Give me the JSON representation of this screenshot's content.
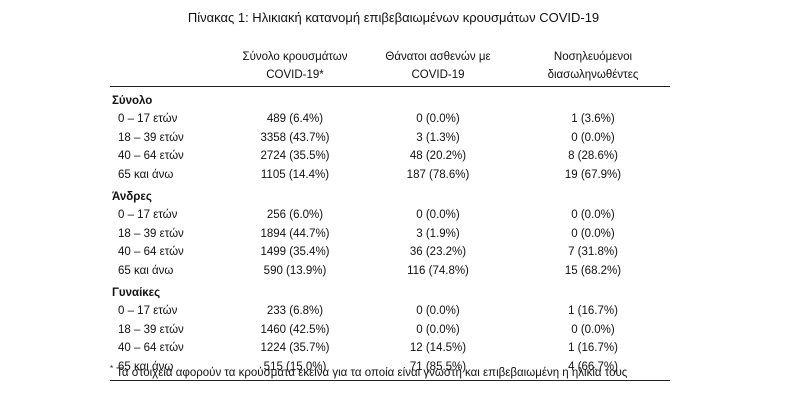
{
  "title": "Πίνακας 1: Ηλικιακή κατανομή επιβεβαιωμένων κρουσμάτων COVID-19",
  "columns": [
    {
      "line1": "Σύνολο κρουσμάτων",
      "line2": "COVID-19*"
    },
    {
      "line1": "Θάνατοι ασθενών με",
      "line2": "COVID-19"
    },
    {
      "line1": "Νοσηλευόμενοι",
      "line2": "διασωληνωθέντες"
    }
  ],
  "groups": [
    {
      "name": "Σύνολο",
      "rows": [
        {
          "age": "0 – 17 ετών",
          "cases": "489 (6.4%)",
          "deaths": "0 (0.0%)",
          "intubated": "1 (3.6%)"
        },
        {
          "age": "18 – 39 ετών",
          "cases": "3358 (43.7%)",
          "deaths": "3 (1.3%)",
          "intubated": "0 (0.0%)"
        },
        {
          "age": "40 – 64 ετών",
          "cases": "2724 (35.5%)",
          "deaths": "48 (20.2%)",
          "intubated": "8 (28.6%)"
        },
        {
          "age": "65 και άνω",
          "cases": "1105 (14.4%)",
          "deaths": "187 (78.6%)",
          "intubated": "19 (67.9%)"
        }
      ]
    },
    {
      "name": "Άνδρες",
      "rows": [
        {
          "age": "0 – 17 ετών",
          "cases": "256 (6.0%)",
          "deaths": "0 (0.0%)",
          "intubated": "0 (0.0%)"
        },
        {
          "age": "18 – 39 ετών",
          "cases": "1894 (44.7%)",
          "deaths": "3 (1.9%)",
          "intubated": "0 (0.0%)"
        },
        {
          "age": "40 – 64 ετών",
          "cases": "1499 (35.4%)",
          "deaths": "36 (23.2%)",
          "intubated": "7 (31.8%)"
        },
        {
          "age": "65 και άνω",
          "cases": "590 (13.9%)",
          "deaths": "116 (74.8%)",
          "intubated": "15 (68.2%)"
        }
      ]
    },
    {
      "name": "Γυναίκες",
      "rows": [
        {
          "age": "0 – 17 ετών",
          "cases": "233 (6.8%)",
          "deaths": "0 (0.0%)",
          "intubated": "1 (16.7%)"
        },
        {
          "age": "18 – 39 ετών",
          "cases": "1460 (42.5%)",
          "deaths": "0 (0.0%)",
          "intubated": "0 (0.0%)"
        },
        {
          "age": "40 – 64 ετών",
          "cases": "1224 (35.7%)",
          "deaths": "12 (14.5%)",
          "intubated": "1 (16.7%)"
        },
        {
          "age": "65 και άνω",
          "cases": "515 (15.0%)",
          "deaths": "71 (85.5%)",
          "intubated": "4 (66.7%)"
        }
      ]
    }
  ],
  "footnote": {
    "marker": "*",
    "text": "Τα στοιχεία αφορούν τα κρούσματα εκείνα για τα οποία είναι γνωστή και επιβεβαιωμένη η ηλικία τους"
  }
}
